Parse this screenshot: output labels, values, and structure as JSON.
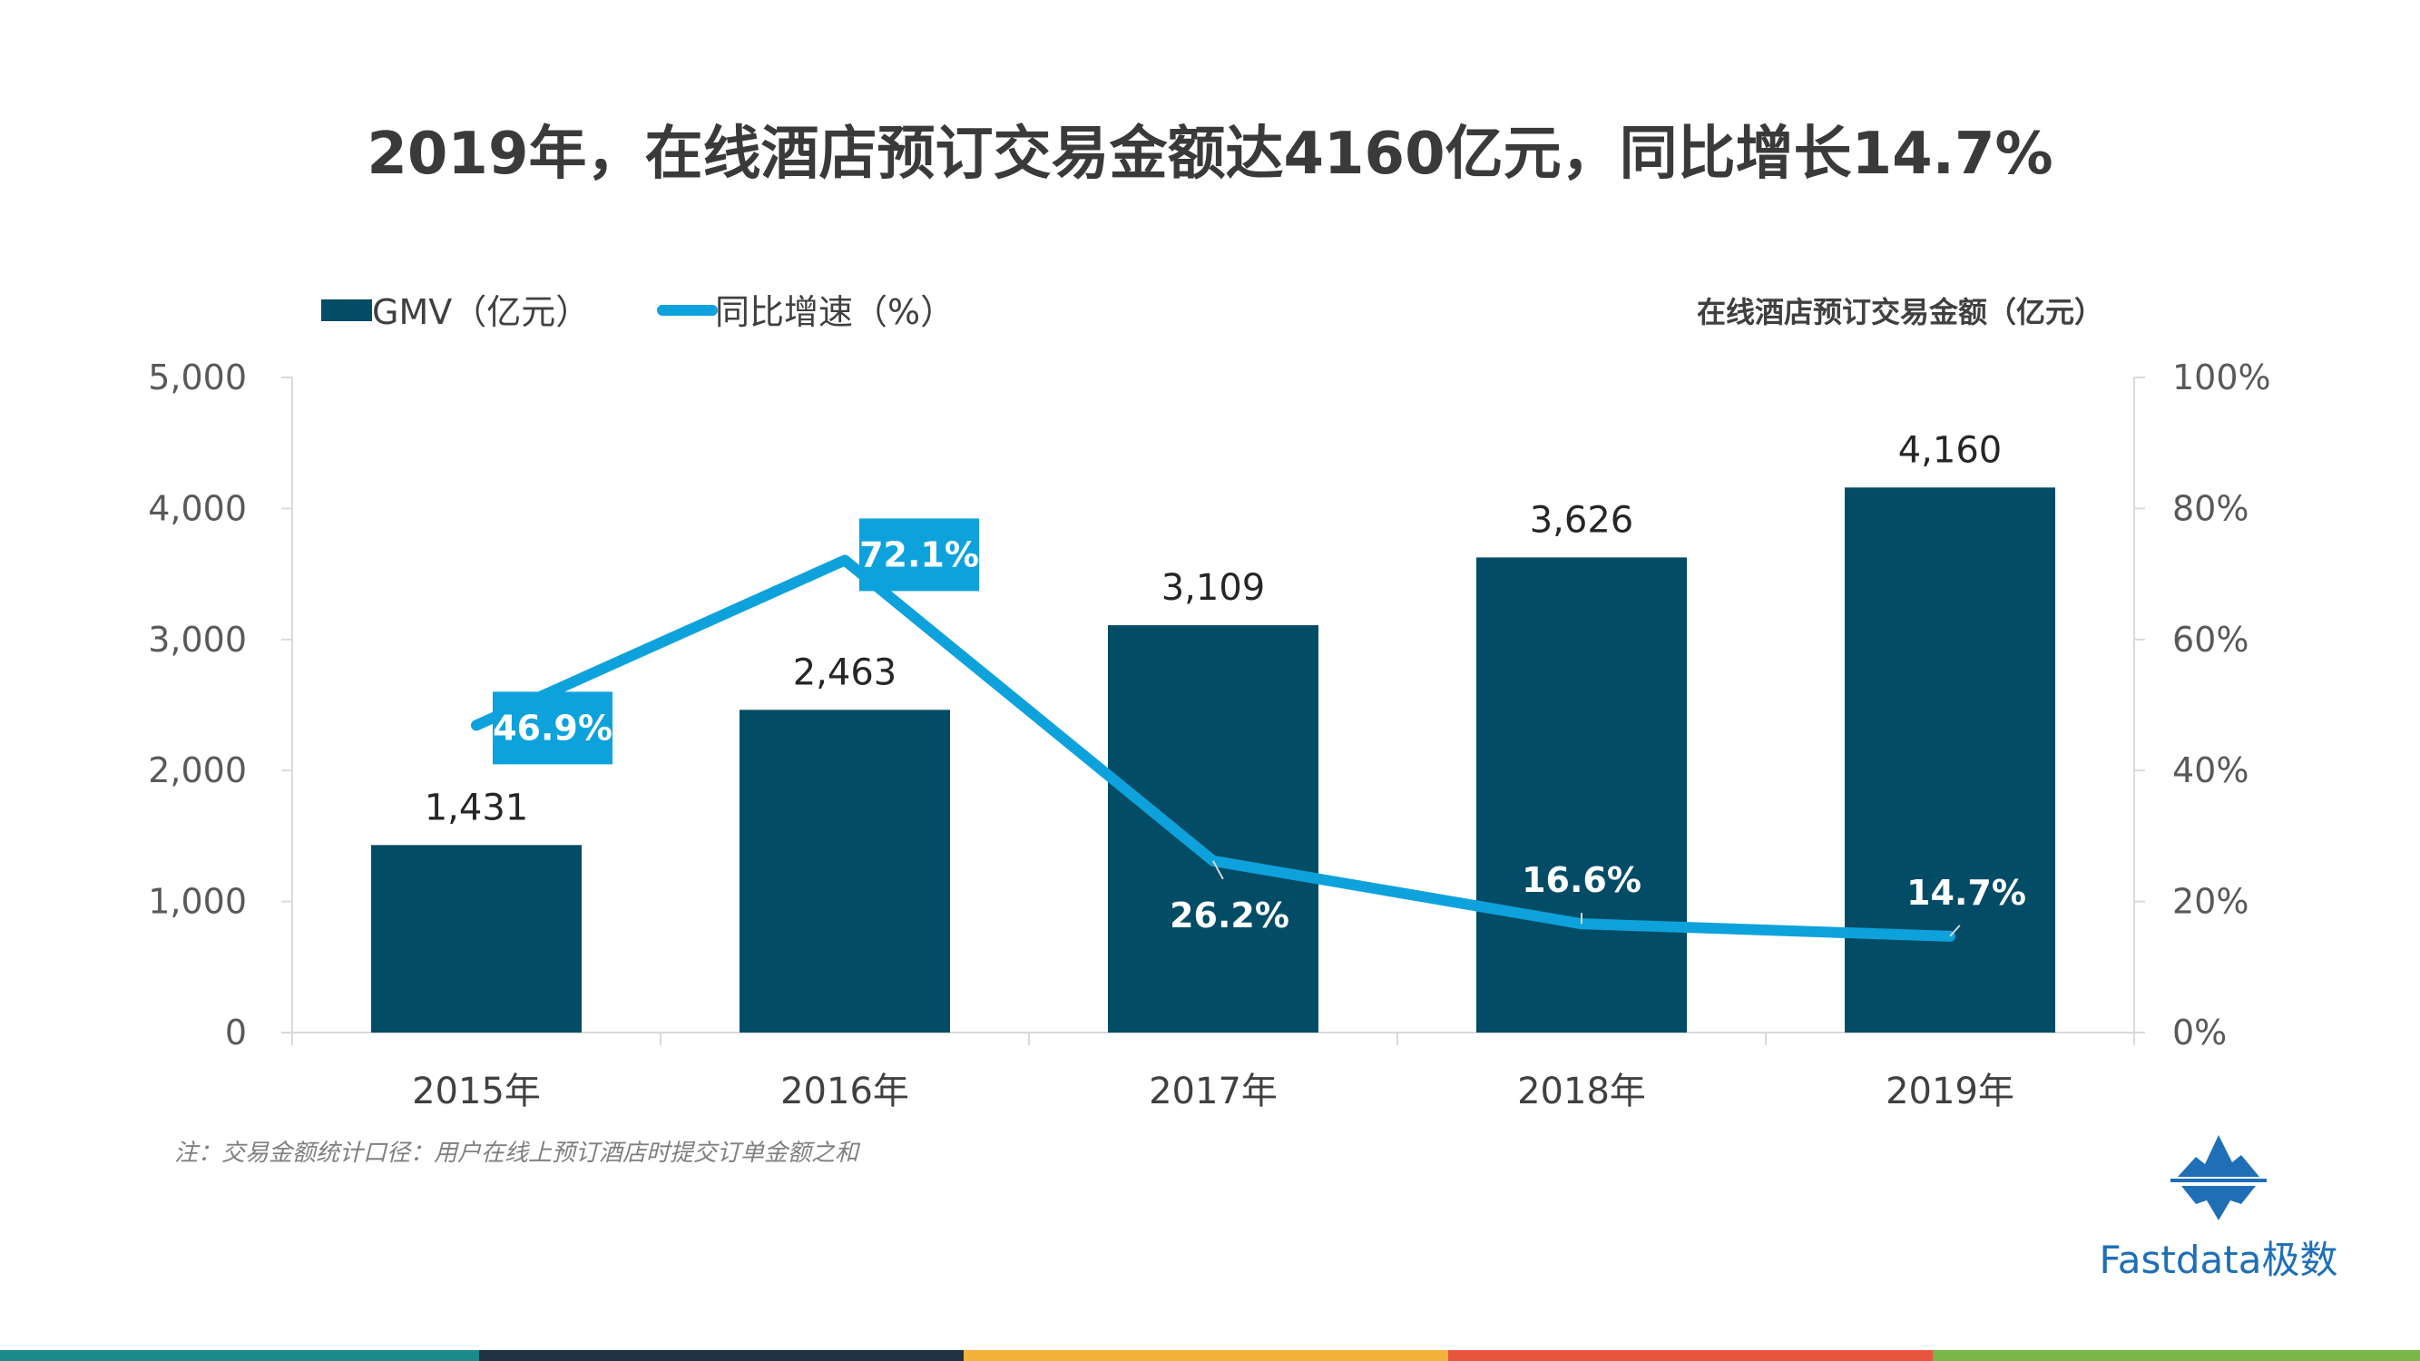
{
  "title": "2019年，在线酒店预订交易金额达4160亿元，同比增长14.7%",
  "chart_data": {
    "type": "bar",
    "categories": [
      "2015年",
      "2016年",
      "2017年",
      "2018年",
      "2019年"
    ],
    "series": [
      {
        "name": "GMV（亿元）",
        "type": "bar",
        "axis": "left",
        "values": [
          1431,
          2463,
          3109,
          3626,
          4160
        ],
        "labels": [
          "1,431",
          "2,463",
          "3,109",
          "3,626",
          "4,160"
        ],
        "color": "#034c66"
      },
      {
        "name": "同比增速（%）",
        "type": "line",
        "axis": "right",
        "values": [
          46.9,
          72.1,
          26.2,
          16.6,
          14.7
        ],
        "labels": [
          "46.9%",
          "72.1%",
          "26.2%",
          "16.6%",
          "14.7%"
        ],
        "color": "#0ea2dc"
      }
    ],
    "ylim": [
      0,
      5000
    ],
    "yticks": [
      "0",
      "1,000",
      "2,000",
      "3,000",
      "4,000",
      "5,000"
    ],
    "y2lim": [
      0,
      100
    ],
    "y2ticks": [
      "0%",
      "20%",
      "40%",
      "60%",
      "80%",
      "100%"
    ],
    "unit_label": "在线酒店预订交易金额（亿元）",
    "legend_position": "top-left",
    "grid": false
  },
  "note": "注：交易金额统计口径：用户在线上预订酒店时提交订单金额之和",
  "brand": {
    "name": "Fastdata极数",
    "logo_icon": "iceberg-logo-icon",
    "color": "#1f6fb6"
  },
  "bottom_strip_colors": [
    "#1a8a8a",
    "#1f3144",
    "#f3b23a",
    "#e8553f",
    "#7ab648"
  ]
}
